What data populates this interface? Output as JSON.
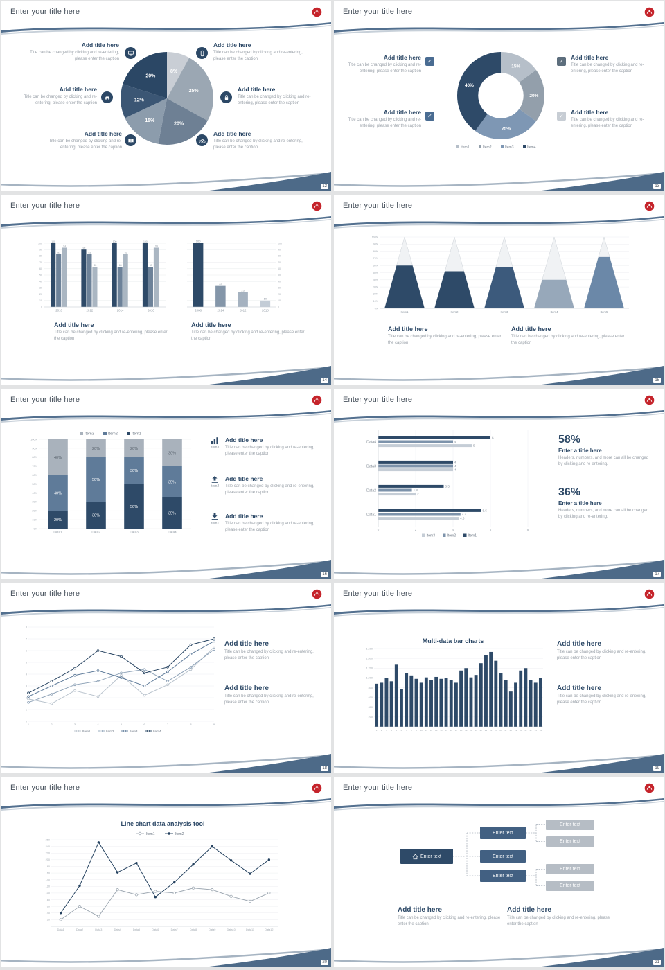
{
  "strings": {
    "slide_title": "Enter your title here",
    "add_title": "Add title here",
    "caption": "Title can be changed by clicking and re-entering, please enter the caption",
    "enter_a_title": "Enter a title here",
    "stat_caption": "Headers, numbers, and more can all be changed by clicking and re-entering.",
    "enter_text": "Enter text",
    "stat1": "58%",
    "stat2": "36%"
  },
  "icons": {
    "check": "✓"
  },
  "pages": [
    "12",
    "13",
    "14",
    "15",
    "16",
    "17",
    "18",
    "19",
    "20",
    "21"
  ],
  "colors": {
    "accent_navy": "#2c4866",
    "swoosh_blue": "#53708f",
    "wedge_blue": "#4d6a88",
    "logo_red": "#c5242b"
  },
  "slide13": {
    "check_colors": [
      "#4a6c92",
      "#4a6c92",
      "#5d6e7d",
      "#c7cdd4"
    ]
  },
  "slide16": {
    "icon_labels": [
      "Item3",
      "Item2",
      "Item1"
    ]
  },
  "chart_data": [
    {
      "id": "pie",
      "type": "pie",
      "values": [
        8,
        25,
        20,
        15,
        12,
        20
      ],
      "labels": [
        "8%",
        "25%",
        "20%",
        "15%",
        "12%",
        "20%"
      ],
      "colors": [
        "#c9ced5",
        "#9ba7b3",
        "#6e8094",
        "#8c9cac",
        "#3b5674",
        "#2b4765"
      ]
    },
    {
      "id": "donut",
      "type": "donut",
      "values": [
        15,
        20,
        25,
        40
      ],
      "labels": [
        "15%",
        "20%",
        "25%",
        "40%"
      ],
      "colors": [
        "#b6bfc9",
        "#939fab",
        "#7e97b4",
        "#2e4a68"
      ],
      "legend": [
        "Item1",
        "Item2",
        "Item3",
        "Item4"
      ],
      "legend_colors": [
        "#b6bfc9",
        "#939fab",
        "#7e97b4",
        "#2e4a68"
      ],
      "legend_position": "bottom"
    },
    {
      "id": "barsA",
      "type": "bar_grouped",
      "ymax": 100,
      "ystep": 10,
      "categories": [
        "2010",
        "2012",
        "2014",
        "2016"
      ],
      "series": [
        {
          "color": "#2e4a68",
          "values": [
            100,
            90,
            100,
            100
          ]
        },
        {
          "color": "#6d8299",
          "values": [
            83,
            83,
            63,
            63
          ]
        },
        {
          "color": "#aab6c2",
          "values": [
            93,
            63,
            83,
            93
          ]
        }
      ]
    },
    {
      "id": "barsB",
      "type": "bar_simple",
      "ymax": 100,
      "ystep": 10,
      "categories": [
        "2008",
        "2014",
        "2012",
        "2018"
      ],
      "values": [
        100,
        33,
        23,
        10
      ],
      "labels": [
        "100",
        "33",
        "23",
        "10"
      ],
      "colors": [
        "#2e4a68",
        "#8496a9",
        "#a5b2c0",
        "#c3ccd6"
      ]
    },
    {
      "id": "pyramid",
      "type": "pyramid",
      "categories": [
        "Item1",
        "Item2",
        "Item3",
        "Item4",
        "Item5"
      ],
      "fill_percent": [
        60,
        52,
        58,
        40,
        72
      ],
      "fill_colors": [
        "#2e4a68",
        "#2e4a68",
        "#3c5a7c",
        "#97a8ba",
        "#6b88a8"
      ],
      "yticks": [
        "0%",
        "10%",
        "20%",
        "30%",
        "40%",
        "50%",
        "60%",
        "70%",
        "80%",
        "90%",
        "100%"
      ]
    },
    {
      "id": "stacked",
      "type": "bar_stacked",
      "categories": [
        "Data1",
        "Data2",
        "Data3",
        "Data4"
      ],
      "series": [
        {
          "name": "Item1",
          "color": "#2e4a68",
          "values": [
            20,
            30,
            50,
            35
          ]
        },
        {
          "name": "Item2",
          "color": "#5f7b99",
          "values": [
            40,
            50,
            30,
            35
          ]
        },
        {
          "name": "Item3",
          "color": "#a9b2bc",
          "values": [
            40,
            20,
            20,
            30
          ]
        }
      ],
      "legend": [
        "Item3",
        "Item2",
        "Item1"
      ],
      "legend_colors": [
        "#a9b2bc",
        "#5f7b99",
        "#2e4a68"
      ],
      "yticks": [
        "0%",
        "10%",
        "20%",
        "30%",
        "40%",
        "50%",
        "60%",
        "70%",
        "80%",
        "90%",
        "100%"
      ]
    },
    {
      "id": "hbar",
      "type": "hbar",
      "xmax": 8,
      "xticks": [
        0,
        2,
        4,
        6,
        8
      ],
      "categories": [
        "Data1",
        "Data2",
        "Data3",
        "Data4"
      ],
      "series": [
        {
          "name": "Item1",
          "color": "#2e4a68",
          "values": [
            5.5,
            3.5,
            4,
            6
          ]
        },
        {
          "name": "Item2",
          "color": "#7d93ab",
          "values": [
            4.4,
            1.8,
            4,
            4
          ]
        },
        {
          "name": "Item3",
          "color": "#c5cdd6",
          "values": [
            4.3,
            2,
            4,
            5
          ]
        }
      ],
      "legend": [
        "Item3",
        "Item2",
        "Item1"
      ],
      "legend_colors": [
        "#c5cdd6",
        "#7d93ab",
        "#2e4a68"
      ]
    },
    {
      "id": "lines",
      "type": "lines",
      "ymax": 8,
      "ystep": 1,
      "x": [
        "1",
        "2",
        "3",
        "4",
        "5",
        "6",
        "7",
        "8",
        "9"
      ],
      "series": [
        {
          "name": "Item1",
          "color": "#b9c3cd",
          "values": [
            1.9,
            1.5,
            2.6,
            2.1,
            3.9,
            2.2,
            3.1,
            4.4,
            6.3
          ]
        },
        {
          "name": "Item2",
          "color": "#8fa3b8",
          "values": [
            1.6,
            2.3,
            3.1,
            3.4,
            4.1,
            4.4,
            3.4,
            4.6,
            6.1
          ]
        },
        {
          "name": "Item3",
          "color": "#5d7a99",
          "values": [
            2.1,
            3,
            3.9,
            4.3,
            3.7,
            3,
            4.2,
            5.7,
            6.8
          ]
        },
        {
          "name": "Item4",
          "color": "#24415f",
          "values": [
            2.4,
            3.4,
            4.5,
            6,
            5.5,
            4.1,
            4.6,
            6.5,
            7
          ]
        }
      ]
    },
    {
      "id": "multibar",
      "type": "bar_dense",
      "title": "Multi-data bar charts",
      "ymax": 1600,
      "ystep": 200,
      "color": "#2e4a68",
      "yticks": [
        "200",
        "400",
        "600",
        "800",
        "1,000",
        "1,200",
        "1,400",
        "1,600"
      ],
      "values": [
        880,
        900,
        1000,
        930,
        1270,
        770,
        1100,
        1050,
        980,
        900,
        1010,
        950,
        1020,
        980,
        1000,
        950,
        900,
        1150,
        1200,
        1010,
        1060,
        1300,
        1460,
        1530,
        1350,
        1100,
        950,
        720,
        900,
        1150,
        1200,
        950,
        900,
        1000
      ],
      "xlabels": [
        "1",
        "2",
        "3",
        "4",
        "5",
        "6",
        "7",
        "8",
        "9",
        "10",
        "11",
        "12",
        "13",
        "14",
        "15",
        "16",
        "17",
        "18",
        "19",
        "20",
        "21",
        "22",
        "23",
        "24",
        "25",
        "26",
        "27",
        "28",
        "29",
        "30",
        "31",
        "32",
        "33",
        "34"
      ]
    },
    {
      "id": "lines2",
      "type": "lines2",
      "title": "Line chart data analysis tool",
      "ymax": 260,
      "ystep": 20,
      "yticks": [
        "20",
        "40",
        "60",
        "80",
        "100",
        "120",
        "140",
        "160",
        "180",
        "200",
        "220",
        "240",
        "260"
      ],
      "x": [
        "Data1",
        "Data2",
        "Data3",
        "Data4",
        "Data5",
        "Data6",
        "Data7",
        "Data8",
        "Data9",
        "Data10",
        "Data11",
        "Data12"
      ],
      "series": [
        {
          "name": "Item1",
          "color": "#9fa9b3",
          "marker": "open",
          "values": [
            20,
            60,
            30,
            110,
            95,
            105,
            100,
            115,
            110,
            90,
            75,
            100
          ]
        },
        {
          "name": "Item2",
          "color": "#23405e",
          "marker": "filled",
          "values": [
            40,
            122,
            252,
            162,
            190,
            88,
            132,
            186,
            240,
            198,
            158,
            200
          ]
        }
      ]
    }
  ],
  "diagram": {
    "levels": 3,
    "node_label": "Enter text"
  }
}
